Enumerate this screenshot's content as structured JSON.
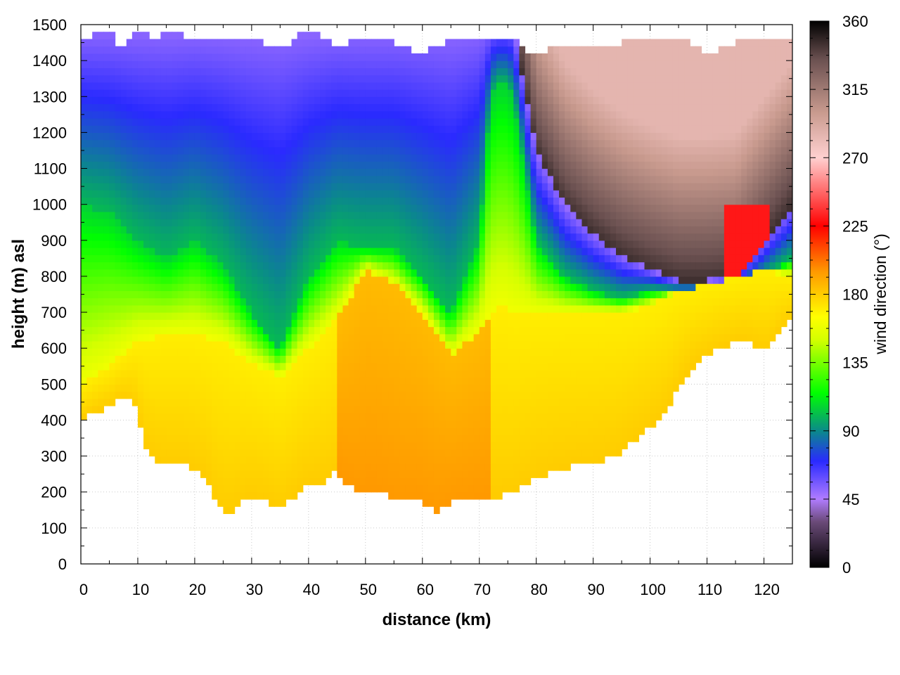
{
  "chart_data": {
    "type": "heatmap",
    "title": "",
    "xlabel": "distance (km)",
    "ylabel": "height (m) asl",
    "colorbar_label": "wind direction (°)",
    "xlim": [
      0,
      125
    ],
    "ylim": [
      0,
      1500
    ],
    "clim": [
      0,
      360
    ],
    "x_ticks": [
      0,
      10,
      20,
      30,
      40,
      50,
      60,
      70,
      80,
      90,
      100,
      110,
      120
    ],
    "y_ticks": [
      0,
      100,
      200,
      300,
      400,
      500,
      600,
      700,
      800,
      900,
      1000,
      1100,
      1200,
      1300,
      1400,
      1500
    ],
    "colorbar_ticks": [
      0,
      45,
      90,
      135,
      180,
      225,
      270,
      315,
      360
    ],
    "grid": true,
    "colormap": [
      {
        "v": 0,
        "color": "#000000"
      },
      {
        "v": 30,
        "color": "#6a4a78"
      },
      {
        "v": 45,
        "color": "#b07cff"
      },
      {
        "v": 70,
        "color": "#2a2aff"
      },
      {
        "v": 90,
        "color": "#0a8a8a"
      },
      {
        "v": 115,
        "color": "#00ff00"
      },
      {
        "v": 150,
        "color": "#d4ff00"
      },
      {
        "v": 165,
        "color": "#ffff00"
      },
      {
        "v": 195,
        "color": "#ff9900"
      },
      {
        "v": 225,
        "color": "#ff0000"
      },
      {
        "v": 270,
        "color": "#ffd0d0"
      },
      {
        "v": 300,
        "color": "#c89a8e"
      },
      {
        "v": 335,
        "color": "#6a5050"
      },
      {
        "v": 360,
        "color": "#000000"
      }
    ],
    "terrain_height": {
      "x": [
        0,
        2,
        5,
        7,
        9,
        10,
        11,
        13,
        15,
        18,
        20,
        22,
        24,
        26,
        28,
        30,
        32,
        34,
        35,
        37,
        39,
        41,
        43,
        45,
        47,
        49,
        51,
        53,
        55,
        57,
        59,
        61,
        62,
        63,
        65,
        67,
        70,
        72,
        74,
        76,
        78,
        80,
        83,
        86,
        90,
        94,
        97,
        100,
        103,
        106,
        108,
        110,
        112,
        114,
        116,
        118,
        119,
        120,
        121,
        123,
        125
      ],
      "y": [
        400,
        420,
        440,
        460,
        450,
        420,
        330,
        290,
        280,
        280,
        260,
        240,
        160,
        140,
        170,
        190,
        180,
        160,
        150,
        180,
        220,
        230,
        230,
        260,
        220,
        200,
        210,
        200,
        180,
        170,
        180,
        160,
        145,
        150,
        170,
        175,
        185,
        190,
        190,
        200,
        220,
        240,
        260,
        270,
        280,
        300,
        340,
        380,
        430,
        520,
        560,
        580,
        600,
        610,
        620,
        610,
        600,
        590,
        600,
        650,
        680
      ]
    },
    "top_height": {
      "x": [
        0,
        3,
        5,
        7,
        10,
        13,
        15,
        20,
        25,
        30,
        35,
        40,
        45,
        50,
        55,
        60,
        65,
        70,
        75,
        78,
        80,
        85,
        90,
        95,
        100,
        105,
        110,
        115,
        120,
        125
      ],
      "y": [
        1450,
        1480,
        1490,
        1430,
        1480,
        1460,
        1480,
        1460,
        1470,
        1460,
        1430,
        1490,
        1440,
        1470,
        1450,
        1420,
        1460,
        1450,
        1470,
        1430,
        1420,
        1440,
        1430,
        1450,
        1460,
        1470,
        1420,
        1450,
        1460,
        1450
      ]
    },
    "layer_boundaries": {
      "x": [
        0,
        5,
        10,
        15,
        20,
        25,
        30,
        35,
        40,
        45,
        50,
        55,
        60,
        65,
        70,
        72,
        74,
        76,
        80,
        85,
        90,
        95,
        100,
        105,
        110,
        115,
        120,
        125
      ],
      "lower_yellow_top": [
        500,
        550,
        620,
        640,
        640,
        620,
        560,
        520,
        600,
        680,
        820,
        780,
        700,
        580,
        650,
        700,
        720,
        700,
        700,
        700,
        700,
        700,
        720,
        760,
        780,
        800,
        820,
        800
      ],
      "green_top": [
        1000,
        980,
        900,
        850,
        900,
        830,
        700,
        600,
        800,
        900,
        880,
        880,
        800,
        700,
        900,
        1300,
        1350,
        1300,
        900,
        800,
        760,
        740,
        760,
        760,
        760,
        760,
        800,
        850
      ],
      "blue_top": [
        1500,
        1500,
        1500,
        1500,
        1500,
        1500,
        1500,
        1500,
        1500,
        1500,
        1500,
        1500,
        1500,
        1500,
        1500,
        1500,
        1500,
        1500,
        1150,
        1000,
        920,
        860,
        820,
        790,
        790,
        800,
        900,
        1000
      ]
    },
    "regions_description_keys": [
      "lower_yellow_orange",
      "green_band",
      "blue_band",
      "dark_brown_northerly"
    ]
  }
}
